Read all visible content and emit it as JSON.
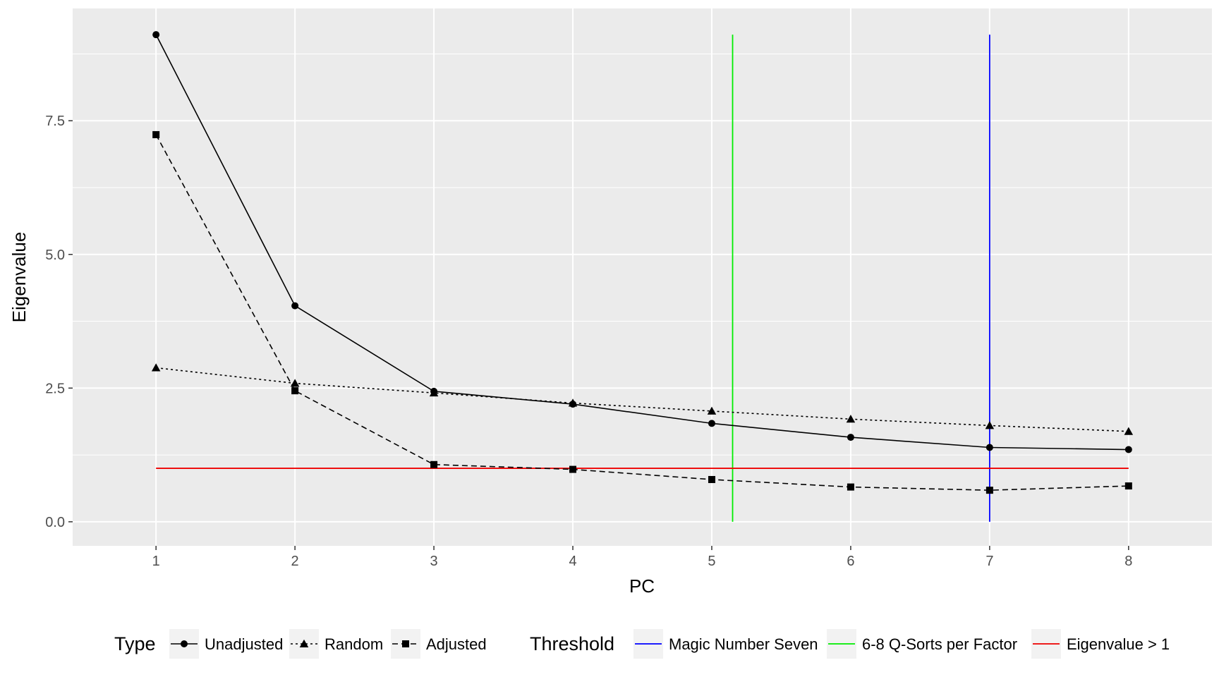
{
  "chart_data": {
    "type": "line",
    "xlabel": "PC",
    "ylabel": "Eigenvalue",
    "x": [
      1,
      2,
      3,
      4,
      5,
      6,
      7,
      8
    ],
    "xlim": [
      0.4,
      8.6
    ],
    "ylim": [
      -0.45,
      9.6
    ],
    "xticks": [
      "1",
      "2",
      "3",
      "4",
      "5",
      "6",
      "7",
      "8"
    ],
    "yticks": [
      {
        "value": 0.0,
        "label": "0.0"
      },
      {
        "value": 2.5,
        "label": "2.5"
      },
      {
        "value": 5.0,
        "label": "5.0"
      },
      {
        "value": 7.5,
        "label": "7.5"
      }
    ],
    "grid": true,
    "background": "#ebebeb",
    "series": [
      {
        "name": "Unadjusted",
        "marker": "circle",
        "dash": "solid",
        "color": "#000000",
        "values": [
          9.11,
          4.04,
          2.44,
          2.2,
          1.84,
          1.58,
          1.39,
          1.35
        ]
      },
      {
        "name": "Random",
        "marker": "triangle",
        "dash": "dotted",
        "color": "#000000",
        "values": [
          2.88,
          2.59,
          2.41,
          2.22,
          2.07,
          1.92,
          1.8,
          1.69
        ]
      },
      {
        "name": "Adjusted",
        "marker": "square",
        "dash": "dashed",
        "color": "#000000",
        "values": [
          7.24,
          2.45,
          1.07,
          0.98,
          0.79,
          0.65,
          0.59,
          0.67
        ]
      }
    ],
    "thresholds": [
      {
        "name": "Magic Number Seven",
        "color": "#0000ff",
        "orientation": "vertical",
        "value": 7,
        "range": [
          0,
          9.11
        ]
      },
      {
        "name": "6-8 Q-Sorts per Factor",
        "color": "#00ee00",
        "orientation": "vertical",
        "value": 5.15,
        "range": [
          0,
          9.11
        ]
      },
      {
        "name": "Eigenvalue > 1",
        "color": "#ee0000",
        "orientation": "horizontal",
        "value": 1,
        "range": [
          1,
          8
        ]
      }
    ],
    "legend": {
      "placement": "bottom",
      "type_title": "Type",
      "threshold_title": "Threshold"
    }
  }
}
